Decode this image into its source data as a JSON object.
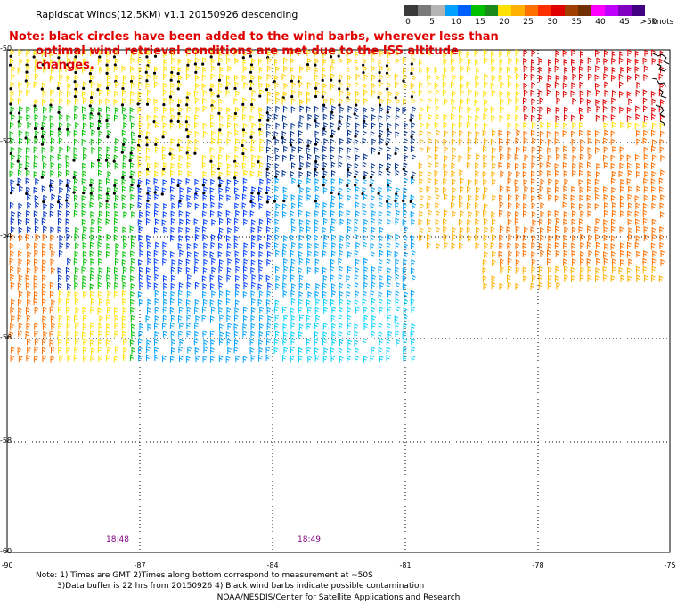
{
  "header": {
    "title": "Rapidscat Winds(12.5KM) v1.1 20150926 descending",
    "note_line1": "Note: black circles have been added to the wind barbs, wherever less than",
    "note_line2": "optimal wind retrieval conditions are met due to the ISS altitude changes."
  },
  "speed_scale": {
    "unit": "knots",
    "labels": [
      "0",
      "5",
      "10",
      "15",
      "20",
      "25",
      "30",
      "35",
      "40",
      "45",
      ">50"
    ],
    "colors": [
      "#3a3a3a",
      "#7a7a7a",
      "#b4b4b4",
      "#00a0ff",
      "#0060ff",
      "#00c000",
      "#1a8a1a",
      "#ffe000",
      "#ffb000",
      "#ff7000",
      "#ff3000",
      "#e00000",
      "#a04000",
      "#703000",
      "#ff00ff",
      "#c000ff",
      "#8000c0",
      "#400080"
    ]
  },
  "map": {
    "lat_labels": [
      "-50",
      "-52",
      "-54",
      "-56",
      "-58",
      "-60"
    ],
    "lon_labels": [
      "-90",
      "-87",
      "-84",
      "-81",
      "-78",
      "-75"
    ],
    "time_labels": [
      "18:48",
      "18:49"
    ]
  },
  "footer": {
    "line1": "Note: 1) Times are GMT 2)Times along bottom correspond to measurement at ~50S",
    "line2": "3)Data buffer is 22 hrs from 20150926 4) Black wind barbs indicate possible contamination",
    "credit": "NOAA/NESDIS/Center for Satellite Applications and Research"
  }
}
